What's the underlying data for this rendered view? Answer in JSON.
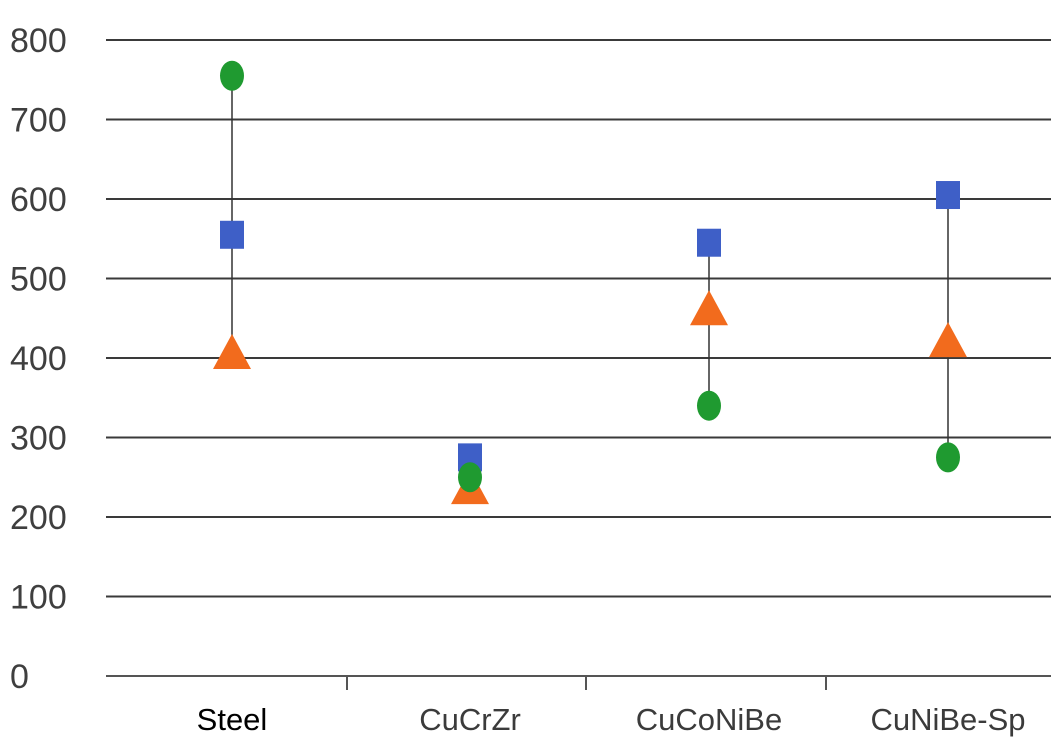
{
  "chart_data": {
    "type": "scatter",
    "title": "",
    "xlabel": "",
    "ylabel": "",
    "ylim": [
      0,
      800
    ],
    "yticks": [
      "0",
      "100",
      "200",
      "300",
      "400",
      "500",
      "600",
      "700",
      "800"
    ],
    "categories": [
      "Steel",
      "CuCrZr",
      "CuCoNiBe",
      "CuNiBe-Sp"
    ],
    "grid": true,
    "legend": "none",
    "series": [
      {
        "marker": "circle",
        "color": "#1f9a30",
        "values": [
          755,
          250,
          340,
          275
        ]
      },
      {
        "marker": "square",
        "color": "#3e5fc7",
        "values": [
          555,
          275,
          545,
          605
        ]
      },
      {
        "marker": "triangle",
        "color": "#f26b1d",
        "values": [
          405,
          235,
          460,
          420
        ]
      }
    ],
    "range_lines": true
  },
  "colors": {
    "grid": "#3a3a3a",
    "axis": "#555555",
    "range_line": "#333333"
  }
}
